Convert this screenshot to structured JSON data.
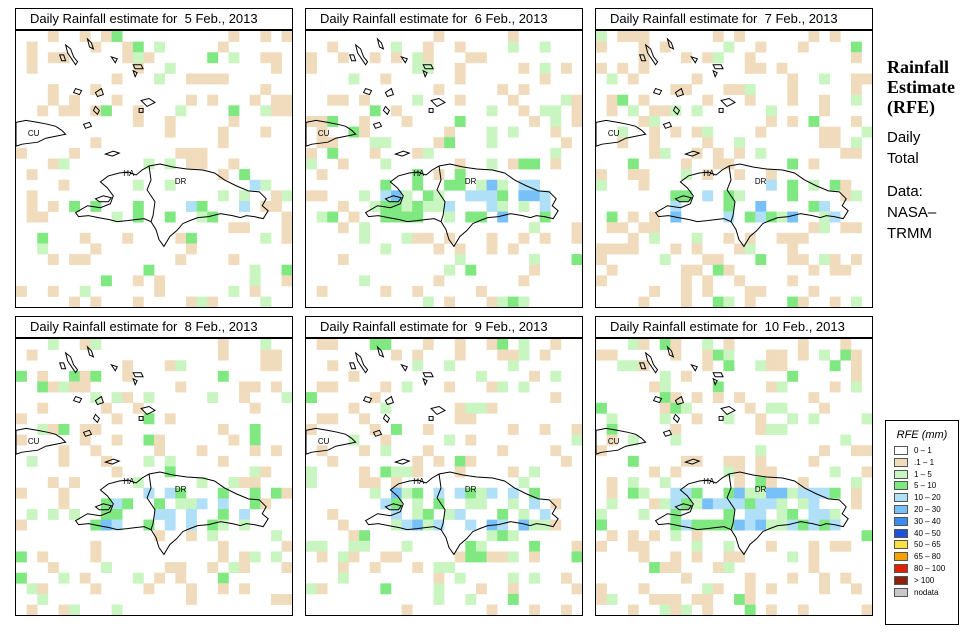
{
  "panels": [
    {
      "title": "Daily Rainfall estimate for  5 Feb., 2013",
      "seed": 11,
      "wet": 0.35,
      "light": 0.16,
      "heavy": 0.0
    },
    {
      "title": "Daily Rainfall estimate for  6 Feb., 2013",
      "seed": 23,
      "wet": 0.55,
      "light": 0.1,
      "heavy": 0.05
    },
    {
      "title": "Daily Rainfall estimate for  7 Feb., 2013",
      "seed": 37,
      "wet": 0.45,
      "light": 0.2,
      "heavy": 0.02
    },
    {
      "title": "Daily Rainfall estimate for  8 Feb., 2013",
      "seed": 41,
      "wet": 0.45,
      "light": 0.15,
      "heavy": 0.02
    },
    {
      "title": "Daily Rainfall estimate for  9 Feb., 2013",
      "seed": 53,
      "wet": 0.55,
      "light": 0.12,
      "heavy": 0.08
    },
    {
      "title": "Daily Rainfall estimate for  10 Feb., 2013",
      "seed": 67,
      "wet": 0.65,
      "light": 0.14,
      "heavy": 0.06
    }
  ],
  "map_labels": {
    "cuba": "CU",
    "haiti": "HA",
    "dominican_republic": "DR"
  },
  "side_panel": {
    "title_lines": [
      "Rainfall",
      "Estimate",
      "(RFE)"
    ],
    "info_lines": [
      "Daily",
      "Total"
    ],
    "source_lines": [
      "Data:",
      "NASA–",
      "TRMM"
    ]
  },
  "legend": {
    "title": "RFE (mm)",
    "classes": [
      {
        "label": "0 – 1",
        "color": "#ffffff"
      },
      {
        "label": ".1 – 1",
        "color": "#f0dcbc"
      },
      {
        "label": "1 – 5",
        "color": "#c8f5c0"
      },
      {
        "label": "5 – 10",
        "color": "#80e880"
      },
      {
        "label": "10 – 20",
        "color": "#b0e0f8"
      },
      {
        "label": "20 – 30",
        "color": "#78c0f8"
      },
      {
        "label": "30 – 40",
        "color": "#3c8cf0"
      },
      {
        "label": "40 – 50",
        "color": "#1e50d8"
      },
      {
        "label": "50 – 65",
        "color": "#f8e040"
      },
      {
        "label": "65 – 80",
        "color": "#f8a000"
      },
      {
        "label": "80 – 100",
        "color": "#e02000"
      },
      {
        "label": "> 100",
        "color": "#902010"
      },
      {
        "label": "nodata",
        "color": "#c8c8c8"
      }
    ]
  }
}
